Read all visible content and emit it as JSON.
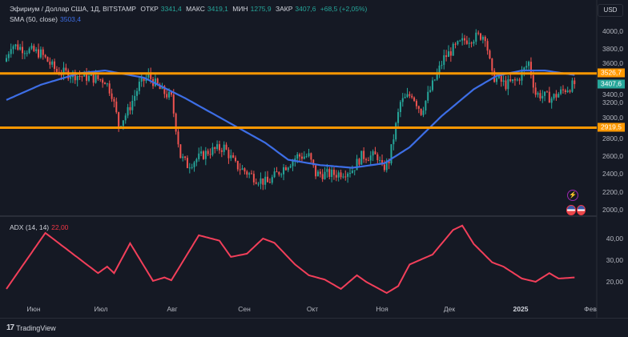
{
  "legend": {
    "title": "Эфириум / Доллар США, 1Д, BITSTAMP",
    "open_label": "ОТКР",
    "open": "3341,4",
    "high_label": "МАКС",
    "high": "3419,1",
    "low_label": "МИН",
    "low": "1275,9",
    "close_label": "ЗАКР",
    "close": "3407,6",
    "change": "+68,5 (+2,05%)",
    "sma_label": "SMA (50, close)",
    "sma_value": "3503,4",
    "adx_label": "ADX (14, 14)",
    "adx_value": "22,00"
  },
  "currency_button": "USD",
  "price_axis": [
    "4000,0",
    "3800,0",
    "3600,0",
    "3400,0",
    "3200,0",
    "3000,0",
    "2800,0",
    "2600,0",
    "2400,0",
    "2200,0",
    "2000,0"
  ],
  "adx_axis": [
    "40,00",
    "30,00",
    "20,00"
  ],
  "badges": {
    "upper_level": "3526,7",
    "last_price": "3407,6",
    "lower_level": "2919,5"
  },
  "x_axis": [
    "Июн",
    "Июл",
    "Авг",
    "Сен",
    "Окт",
    "Ноя",
    "Дек",
    "2025",
    "Фев"
  ],
  "footer": {
    "brand": "TradingView"
  },
  "colors": {
    "up": "#26a69a",
    "down": "#ef5350",
    "sma": "#3d6ee6",
    "level": "#ff9800",
    "adx": "#f23f5a",
    "bg": "#151924"
  },
  "chart_data": {
    "type": "candlestick",
    "days": 249,
    "price_range": [
      1900,
      4150
    ],
    "levels": [
      3526.7,
      2919.5
    ],
    "close_path": [
      [
        0,
        3700
      ],
      [
        2,
        3850
      ],
      [
        8,
        3800
      ],
      [
        15,
        3750
      ],
      [
        22,
        3550
      ],
      [
        32,
        3500
      ],
      [
        43,
        3450
      ],
      [
        46,
        3300
      ],
      [
        49,
        2950
      ],
      [
        53,
        3100
      ],
      [
        58,
        3400
      ],
      [
        62,
        3500
      ],
      [
        67,
        3350
      ],
      [
        72,
        3250
      ],
      [
        76,
        2600
      ],
      [
        79,
        2500
      ],
      [
        88,
        2650
      ],
      [
        95,
        2700
      ],
      [
        100,
        2500
      ],
      [
        109,
        2350
      ],
      [
        114,
        2300
      ],
      [
        120,
        2450
      ],
      [
        127,
        2600
      ],
      [
        132,
        2600
      ],
      [
        135,
        2400
      ],
      [
        144,
        2400
      ],
      [
        151,
        2450
      ],
      [
        155,
        2600
      ],
      [
        162,
        2600
      ],
      [
        164,
        2450
      ],
      [
        167,
        2550
      ],
      [
        172,
        3200
      ],
      [
        177,
        3300
      ],
      [
        181,
        3100
      ],
      [
        186,
        3400
      ],
      [
        191,
        3700
      ],
      [
        195,
        3800
      ],
      [
        200,
        3900
      ],
      [
        207,
        3950
      ],
      [
        209,
        3950
      ],
      [
        212,
        3500
      ],
      [
        218,
        3400
      ],
      [
        223,
        3450
      ],
      [
        228,
        3650
      ],
      [
        231,
        3300
      ],
      [
        238,
        3250
      ],
      [
        244,
        3350
      ],
      [
        248,
        3407.6
      ]
    ],
    "sma50": [
      [
        0,
        3230
      ],
      [
        15,
        3400
      ],
      [
        32,
        3530
      ],
      [
        43,
        3560
      ],
      [
        60,
        3480
      ],
      [
        78,
        3250
      ],
      [
        99,
        2950
      ],
      [
        113,
        2750
      ],
      [
        123,
        2560
      ],
      [
        137,
        2500
      ],
      [
        151,
        2470
      ],
      [
        165,
        2520
      ],
      [
        176,
        2700
      ],
      [
        190,
        3050
      ],
      [
        204,
        3350
      ],
      [
        214,
        3500
      ],
      [
        225,
        3560
      ],
      [
        235,
        3560
      ],
      [
        248,
        3510
      ]
    ],
    "adx": [
      [
        0,
        16.7
      ],
      [
        17,
        42.6
      ],
      [
        40,
        24
      ],
      [
        44,
        27
      ],
      [
        47,
        24
      ],
      [
        54,
        37.8
      ],
      [
        64,
        20.4
      ],
      [
        69,
        22
      ],
      [
        72,
        20.7
      ],
      [
        84,
        41.5
      ],
      [
        93,
        39
      ],
      [
        98,
        31.5
      ],
      [
        105,
        33
      ],
      [
        112,
        40
      ],
      [
        117,
        38
      ],
      [
        126,
        28
      ],
      [
        132,
        23
      ],
      [
        139,
        21
      ],
      [
        146,
        16.7
      ],
      [
        153,
        23
      ],
      [
        157,
        20
      ],
      [
        166,
        14.8
      ],
      [
        171,
        18
      ],
      [
        176,
        28
      ],
      [
        186,
        32.6
      ],
      [
        195,
        44
      ],
      [
        199,
        46
      ],
      [
        204,
        37.5
      ],
      [
        212,
        29
      ],
      [
        217,
        27
      ],
      [
        225,
        21.5
      ],
      [
        231,
        20
      ],
      [
        237,
        24
      ],
      [
        241,
        21.5
      ],
      [
        248,
        22
      ]
    ],
    "adx_range": [
      10,
      50
    ]
  }
}
